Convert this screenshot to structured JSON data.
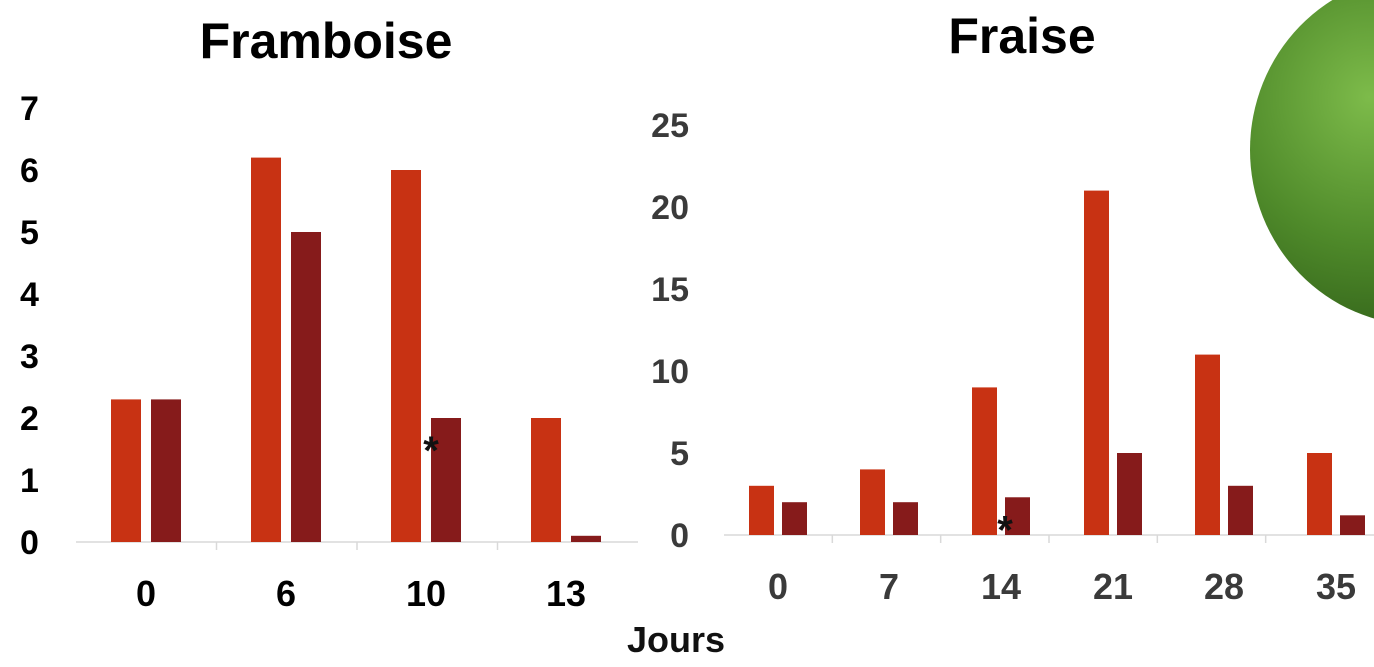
{
  "colors": {
    "series_light": "#C83213",
    "series_dark": "#861B1B",
    "axis_line": "#d9d9d9",
    "left_tick_text": "#000000",
    "right_tick_text": "#3a3a3a",
    "leaf": "#4f8a2a"
  },
  "decoration": {
    "leaf_icon": "leaf-photo-corner"
  },
  "shared_xlabel": "Jours",
  "chart_data": [
    {
      "type": "bar",
      "title": "Framboise",
      "categories": [
        "0",
        "6",
        "10",
        "13"
      ],
      "series": [
        {
          "values": [
            2.3,
            6.2,
            6.0,
            2.0
          ]
        },
        {
          "values": [
            2.3,
            5.0,
            2.0,
            0.1
          ]
        }
      ],
      "ylim": [
        0,
        7
      ],
      "yticks": [
        "0",
        "1",
        "2",
        "3",
        "4",
        "5",
        "6",
        "7"
      ],
      "annotations": [
        {
          "category": "10",
          "series": 1,
          "text": "*"
        }
      ]
    },
    {
      "type": "bar",
      "title": "Fraise",
      "categories": [
        "0",
        "7",
        "14",
        "21",
        "28",
        "35"
      ],
      "series": [
        {
          "values": [
            3,
            4,
            9,
            21,
            11,
            5
          ]
        },
        {
          "values": [
            2,
            2,
            2.3,
            5,
            3,
            1.2
          ]
        }
      ],
      "ylim": [
        0,
        25
      ],
      "yticks": [
        "0",
        "5",
        "10",
        "15",
        "20",
        "25"
      ],
      "annotations": [
        {
          "category": "14",
          "series": 1,
          "text": "*"
        }
      ]
    }
  ]
}
